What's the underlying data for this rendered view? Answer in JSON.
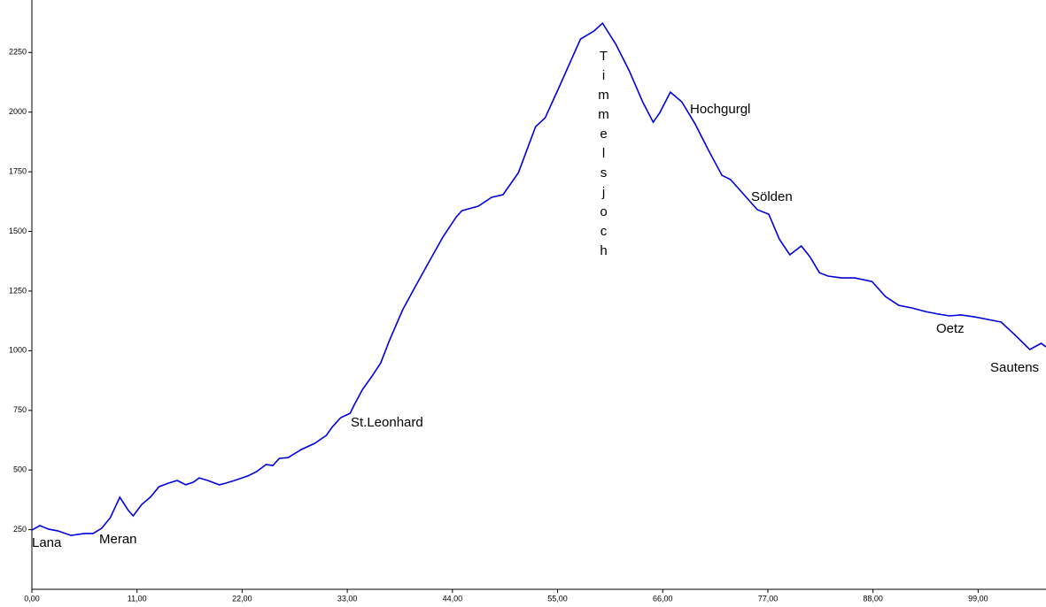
{
  "chart_data": {
    "type": "line",
    "annotations": [
      "Lana",
      "Meran",
      "St.Leonhard",
      "Timmelsjoch",
      "Hochgurgl",
      "Sölden",
      "Oetz",
      "Sautens"
    ],
    "x": [
      0,
      0.83,
      1.76,
      2.7,
      4.1,
      5.5,
      6.4,
      7.3,
      8.2,
      9.2,
      10.1,
      10.6,
      11.5,
      12.4,
      13.3,
      14.3,
      15.2,
      16.1,
      16.9,
      17.5,
      18.4,
      19.6,
      20.3,
      21.2,
      22.6,
      23.5,
      24.5,
      25.2,
      25.9,
      26.8,
      28.2,
      29.6,
      30.8,
      31.4,
      32.3,
      33.3,
      33.7,
      34.6,
      35.6,
      36.5,
      37.4,
      38.8,
      40.2,
      41.6,
      43.0,
      44.4,
      45.0,
      46.7,
      48.1,
      49.3,
      50.9,
      52.7,
      53.7,
      55.1,
      57.4,
      58.8,
      59.7,
      61.1,
      62.5,
      63.9,
      65.0,
      65.7,
      66.8,
      68.0,
      69.4,
      70.8,
      72.2,
      73.1,
      74.5,
      75.9,
      77.1,
      78.2,
      79.3,
      80.5,
      81.4,
      82.4,
      83.3,
      84.7,
      86.1,
      87.9,
      89.3,
      90.7,
      92.1,
      93.5,
      94.9,
      96.0,
      97.2,
      98.6,
      100.0,
      101.4,
      102.8,
      104.4,
      105.6,
      106.1
    ],
    "series": [
      {
        "color": "#0000dd",
        "values": [
          248,
          267,
          252,
          245,
          226,
          234,
          234,
          256,
          300,
          386,
          330,
          308,
          356,
          386,
          430,
          445,
          456,
          438,
          449,
          467,
          456,
          438,
          445,
          456,
          475,
          493,
          523,
          519,
          549,
          552,
          586,
          612,
          645,
          679,
          719,
          738,
          771,
          838,
          894,
          949,
          1042,
          1172,
          1275,
          1376,
          1476,
          1561,
          1587,
          1606,
          1643,
          1654,
          1746,
          1939,
          1976,
          2099,
          2306,
          2340,
          2373,
          2284,
          2173,
          2043,
          1958,
          1998,
          2084,
          2043,
          1950,
          1839,
          1735,
          1717,
          1654,
          1591,
          1572,
          1468,
          1402,
          1439,
          1394,
          1327,
          1313,
          1305,
          1305,
          1290,
          1227,
          1190,
          1179,
          1164,
          1153,
          1146,
          1150,
          1142,
          1131,
          1120,
          1068,
          1005,
          1031,
          1016
        ]
      }
    ],
    "xlim": [
      0,
      106.1
    ],
    "ylim": [
      0,
      2470
    ],
    "xticks": [
      {
        "value": 0,
        "label": "0,00"
      },
      {
        "value": 11,
        "label": "11,00"
      },
      {
        "value": 22,
        "label": "22,00"
      },
      {
        "value": 33,
        "label": "33,00"
      },
      {
        "value": 44,
        "label": "44,00"
      },
      {
        "value": 55,
        "label": "55,00"
      },
      {
        "value": 66,
        "label": "66,00"
      },
      {
        "value": 77,
        "label": "77,00"
      },
      {
        "value": 88,
        "label": "88,00"
      },
      {
        "value": 99,
        "label": "99,00"
      }
    ],
    "yticks": [
      250,
      500,
      750,
      1000,
      1250,
      1500,
      1750,
      2000,
      2250
    ],
    "grid": false
  }
}
